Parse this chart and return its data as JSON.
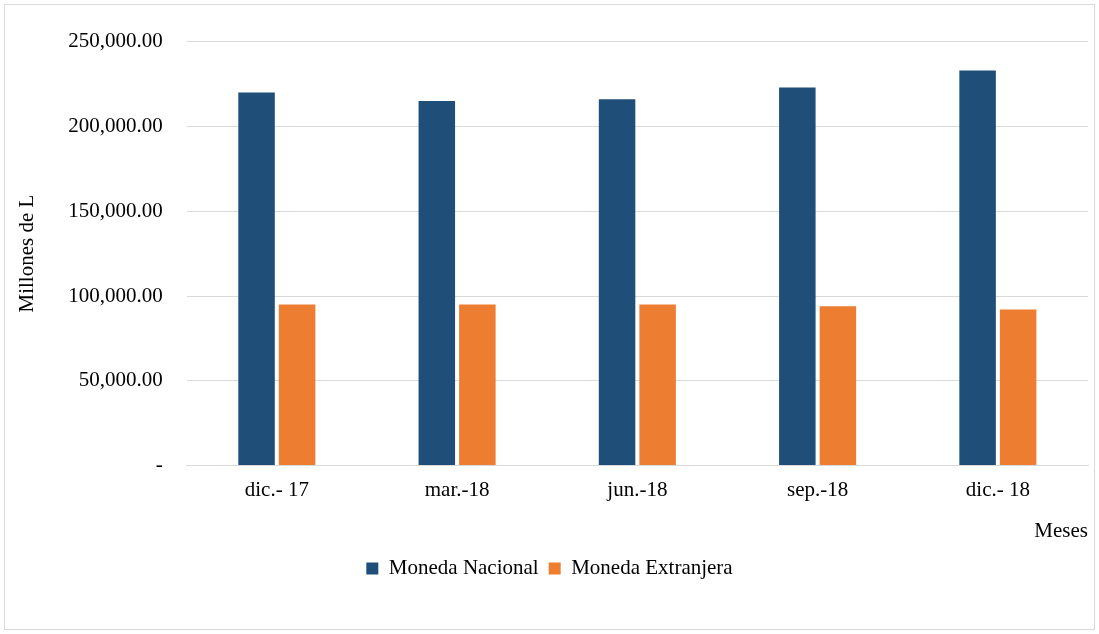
{
  "chart_data": {
    "type": "bar",
    "xlabel": "Meses",
    "ylabel": "Millones de L",
    "categories": [
      "dic.- 17",
      "mar.-18",
      "jun.-18",
      "sep.-18",
      "dic.- 18"
    ],
    "series": [
      {
        "name": "Moneda Nacional",
        "color": "#1f4e79",
        "values": [
          220000,
          215000,
          216000,
          223000,
          233000
        ]
      },
      {
        "name": "Moneda Extranjera",
        "color": "#ed7d31",
        "values": [
          95000,
          95000,
          95000,
          94000,
          92000
        ]
      }
    ],
    "ylim": [
      0,
      250000
    ],
    "yticks": [
      {
        "value": 0,
        "label": "-"
      },
      {
        "value": 50000,
        "label": "50,000.00"
      },
      {
        "value": 100000,
        "label": "100,000.00"
      },
      {
        "value": 150000,
        "label": "150,000.00"
      },
      {
        "value": 200000,
        "label": "200,000.00"
      },
      {
        "value": 250000,
        "label": "250,000.00"
      }
    ],
    "grid": "y",
    "legend": "bottom"
  }
}
